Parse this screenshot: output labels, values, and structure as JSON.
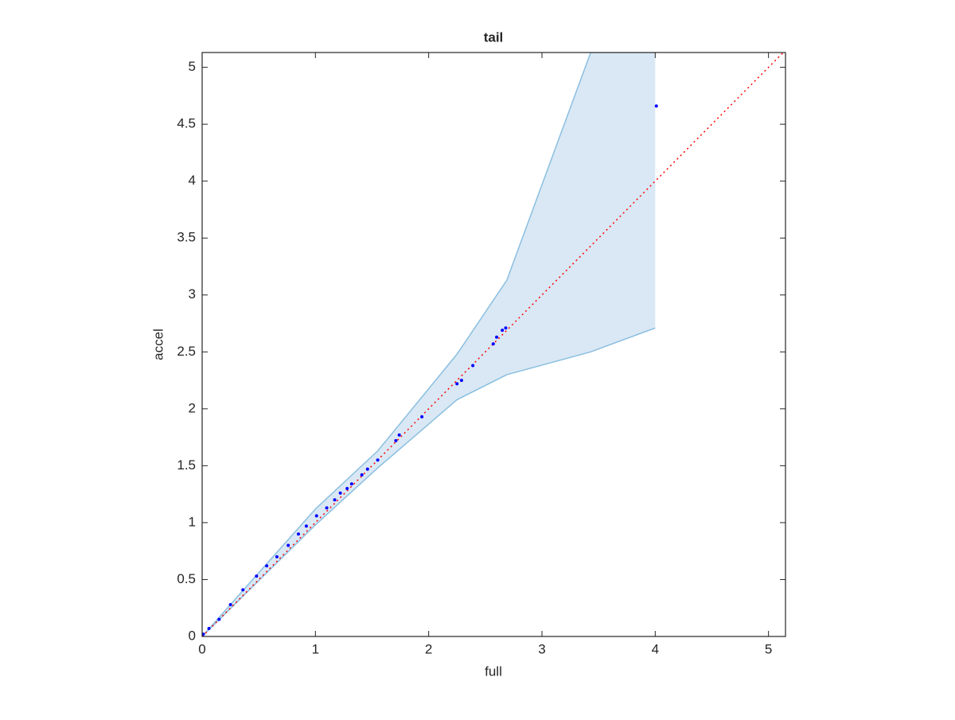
{
  "chart_data": {
    "type": "scatter",
    "title": "tail",
    "x_label": "full",
    "y_label": "accel",
    "xlim": [
      0,
      5.15
    ],
    "ylim": [
      0,
      5.13
    ],
    "xticks": [
      0,
      1,
      2,
      3,
      4,
      5
    ],
    "yticks": [
      0,
      0.5,
      1,
      1.5,
      2,
      2.5,
      3,
      3.5,
      4,
      4.5,
      5
    ],
    "band": {
      "color": "#d9e8f4",
      "edge_color": "#8bbfe0",
      "x": [
        0,
        0.5,
        1,
        1.55,
        2.25,
        2.69,
        3.43,
        4.0
      ],
      "upper": [
        0,
        0.56,
        1.12,
        1.63,
        2.48,
        3.13,
        5.13,
        5.13
      ],
      "lower": [
        0,
        0.49,
        0.98,
        1.48,
        2.08,
        2.3,
        2.5,
        2.71
      ]
    },
    "reference_line": {
      "color": "#ff0000",
      "x": [
        0,
        5.15
      ],
      "values": [
        0,
        5.15
      ]
    },
    "series": [
      {
        "color": "#0000ff",
        "x": [
          4.01,
          2.68,
          2.65,
          2.6,
          2.57,
          2.39,
          2.29,
          2.25,
          1.94,
          1.74,
          1.71,
          1.55,
          1.46,
          1.41,
          1.32,
          1.28,
          1.22,
          1.17,
          1.1,
          1.01,
          0.92,
          0.85,
          0.76,
          0.66,
          0.57,
          0.48,
          0.36,
          0.25,
          0.15,
          0.06,
          0.01
        ],
        "values": [
          4.66,
          2.71,
          2.69,
          2.63,
          2.57,
          2.38,
          2.25,
          2.22,
          1.93,
          1.77,
          1.72,
          1.55,
          1.47,
          1.42,
          1.34,
          1.3,
          1.26,
          1.2,
          1.13,
          1.06,
          0.97,
          0.9,
          0.8,
          0.7,
          0.62,
          0.53,
          0.41,
          0.28,
          0.15,
          0.07,
          0.02
        ]
      }
    ]
  }
}
